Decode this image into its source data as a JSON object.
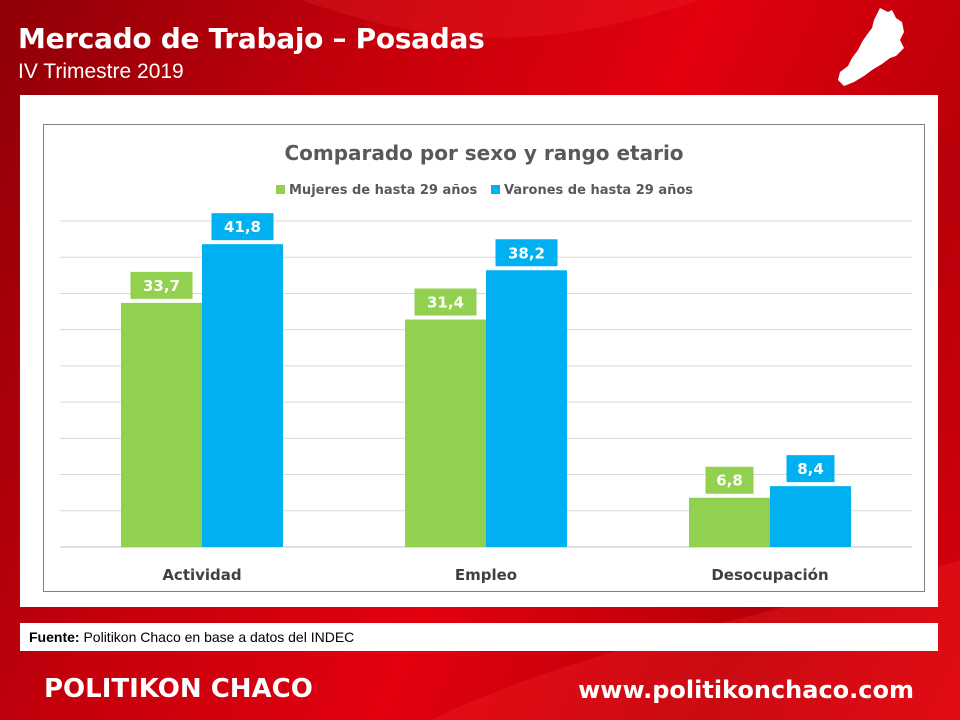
{
  "header": {
    "title": "Mercado de Trabajo – Posadas",
    "subtitle": "IV Trimestre 2019"
  },
  "source": {
    "label": "Fuente:",
    "text": "Politikon Chaco en base a datos del INDEC"
  },
  "footer": {
    "brand": "POLITIKON CHACO",
    "website": "www.politikonchaco.com"
  },
  "chart_data": {
    "type": "bar",
    "title": "Comparado por sexo y rango etario",
    "categories": [
      "Actividad",
      "Empleo",
      "Desocupación"
    ],
    "series": [
      {
        "name": "Mujeres de hasta 29 años",
        "color": "#92d050",
        "values": [
          33.7,
          31.4,
          6.8
        ],
        "labels": [
          "33,7",
          "31,4",
          "6,8"
        ]
      },
      {
        "name": "Varones de hasta 29 años",
        "color": "#00b0f0",
        "values": [
          41.8,
          38.2,
          8.4
        ],
        "labels": [
          "41,8",
          "38,2",
          "8,4"
        ]
      }
    ],
    "ylim": [
      0,
      45
    ],
    "grid": true,
    "legend": "top-center",
    "data_labels": true
  }
}
